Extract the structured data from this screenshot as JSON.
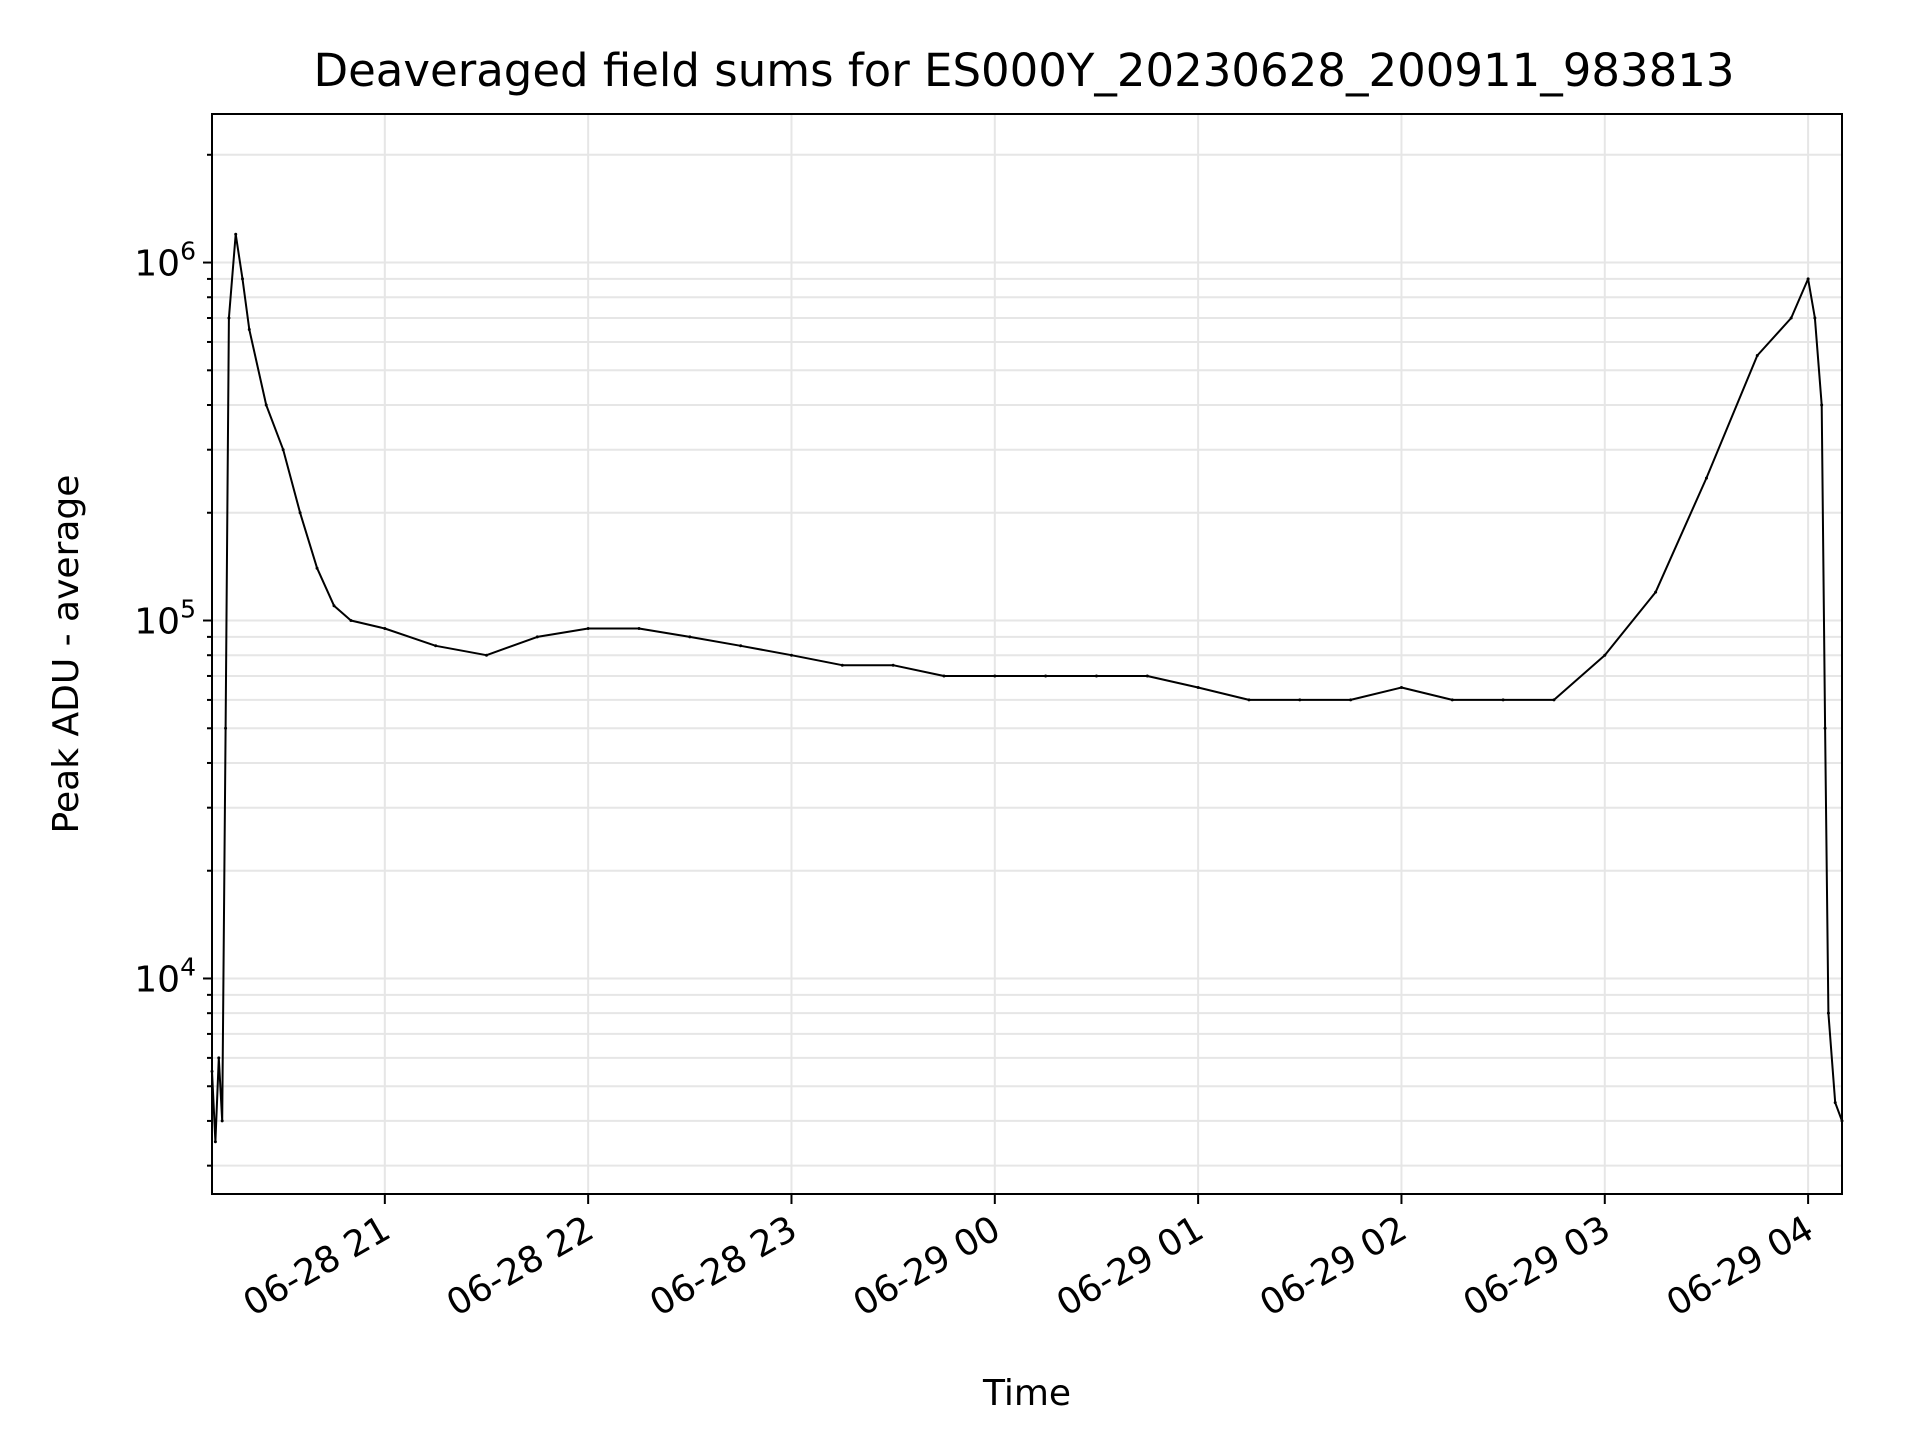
{
  "chart_data": {
    "type": "line",
    "title": "Deaveraged field sums for ES000Y_20230628_200911_983813",
    "xlabel": "Time",
    "ylabel": "Peak ADU - average",
    "yscale": "log",
    "ylim": [
      2500,
      2600000
    ],
    "xlim": [
      "2023-06-28 20:09",
      "2023-06-29 04:10"
    ],
    "grid": true,
    "series_color": "#000000",
    "x_tick_labels": [
      "06-28 21",
      "06-28 22",
      "06-28 23",
      "06-29 00",
      "06-29 01",
      "06-29 02",
      "06-29 03",
      "06-29 04"
    ],
    "x_ticks": [
      "2023-06-28 21:00",
      "2023-06-28 22:00",
      "2023-06-28 23:00",
      "2023-06-29 00:00",
      "2023-06-29 01:00",
      "2023-06-29 02:00",
      "2023-06-29 03:00",
      "2023-06-29 04:00"
    ],
    "y_ticks": [
      {
        "value": 10000,
        "base": "10",
        "exp": "4"
      },
      {
        "value": 100000,
        "base": "10",
        "exp": "5"
      },
      {
        "value": 1000000,
        "base": "10",
        "exp": "6"
      }
    ],
    "series": [
      {
        "x": [
          "2023-06-28 20:09",
          "2023-06-28 20:10",
          "2023-06-28 20:11",
          "2023-06-28 20:12",
          "2023-06-28 20:13",
          "2023-06-28 20:14",
          "2023-06-28 20:16",
          "2023-06-28 20:18",
          "2023-06-28 20:20",
          "2023-06-28 20:25",
          "2023-06-28 20:30",
          "2023-06-28 20:35",
          "2023-06-28 20:40",
          "2023-06-28 20:45",
          "2023-06-28 20:50",
          "2023-06-28 21:00",
          "2023-06-28 21:15",
          "2023-06-28 21:30",
          "2023-06-28 21:45",
          "2023-06-28 22:00",
          "2023-06-28 22:15",
          "2023-06-28 22:30",
          "2023-06-28 22:45",
          "2023-06-28 23:00",
          "2023-06-28 23:15",
          "2023-06-28 23:30",
          "2023-06-28 23:45",
          "2023-06-29 00:00",
          "2023-06-29 00:15",
          "2023-06-29 00:30",
          "2023-06-29 00:45",
          "2023-06-29 01:00",
          "2023-06-29 01:15",
          "2023-06-29 01:30",
          "2023-06-29 01:45",
          "2023-06-29 02:00",
          "2023-06-29 02:15",
          "2023-06-29 02:30",
          "2023-06-29 02:45",
          "2023-06-29 03:00",
          "2023-06-29 03:15",
          "2023-06-29 03:30",
          "2023-06-29 03:45",
          "2023-06-29 03:55",
          "2023-06-29 04:00",
          "2023-06-29 04:02",
          "2023-06-29 04:04",
          "2023-06-29 04:05",
          "2023-06-29 04:06",
          "2023-06-29 04:08",
          "2023-06-29 04:10"
        ],
        "values": [
          5500,
          3500,
          6000,
          4000,
          50000,
          700000,
          1200000,
          900000,
          650000,
          400000,
          300000,
          200000,
          140000,
          110000,
          100000,
          95000,
          85000,
          80000,
          90000,
          95000,
          95000,
          90000,
          85000,
          80000,
          75000,
          75000,
          70000,
          70000,
          70000,
          70000,
          70000,
          65000,
          60000,
          60000,
          60000,
          65000,
          60000,
          60000,
          60000,
          80000,
          120000,
          250000,
          550000,
          700000,
          900000,
          700000,
          400000,
          50000,
          8000,
          4500,
          4000
        ]
      }
    ]
  }
}
